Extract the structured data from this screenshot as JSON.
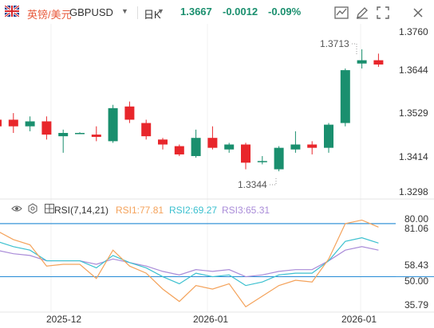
{
  "header": {
    "pair_name": "英镑/美元",
    "symbol": "GBPUSD",
    "interval": "日K",
    "price": "1.3667",
    "change": "-0.0012",
    "change_pct": "-0.09%",
    "up_color": "#1a8f6e",
    "down_color": "#e8262b",
    "tools": [
      "indicator-icon",
      "drawing-icon",
      "fullscreen-icon",
      "close-icon"
    ]
  },
  "price_axis": [
    "1.3760",
    "1.3644",
    "1.3529",
    "1.3414",
    "1.3298"
  ],
  "annotations": {
    "high": "1.3713",
    "low": "1.3344"
  },
  "rsi": {
    "title": "RSI(7,14,21)",
    "rsi1": "RSI1:77.81",
    "rsi2": "RSI2:69.27",
    "rsi3": "RSI3:65.31",
    "axis": [
      "80.00",
      "81.06",
      "58.43",
      "50.00",
      "35.79"
    ],
    "colors": {
      "rsi1": "#f4a25a",
      "rsi2": "#3bc0cf",
      "rsi3": "#a98bd8",
      "ref": "#2c8fd6"
    }
  },
  "x_axis": [
    "2025-12",
    "2026-01",
    "2026-01"
  ],
  "chart_data": {
    "type": "candlestick",
    "y_range": [
      1.326,
      1.379
    ],
    "candles": [
      {
        "o": 1.35,
        "c": 1.348,
        "h": 1.352,
        "l": 1.346
      },
      {
        "o": 1.35,
        "c": 1.348,
        "h": 1.352,
        "l": 1.346
      },
      {
        "o": 1.348,
        "c": 1.3495,
        "h": 1.351,
        "l": 1.3465
      },
      {
        "o": 1.3495,
        "c": 1.3455,
        "h": 1.351,
        "l": 1.344
      },
      {
        "o": 1.345,
        "c": 1.346,
        "h": 1.347,
        "l": 1.34
      },
      {
        "o": 1.346,
        "c": 1.346,
        "h": 1.3462,
        "l": 1.3458
      },
      {
        "o": 1.3455,
        "c": 1.3448,
        "h": 1.348,
        "l": 1.3435
      },
      {
        "o": 1.3435,
        "c": 1.3535,
        "h": 1.3545,
        "l": 1.343
      },
      {
        "o": 1.354,
        "c": 1.35,
        "h": 1.3555,
        "l": 1.349
      },
      {
        "o": 1.349,
        "c": 1.345,
        "h": 1.35,
        "l": 1.344
      },
      {
        "o": 1.344,
        "c": 1.3425,
        "h": 1.3445,
        "l": 1.341
      },
      {
        "o": 1.342,
        "c": 1.3395,
        "h": 1.3425,
        "l": 1.339
      },
      {
        "o": 1.339,
        "c": 1.3445,
        "h": 1.347,
        "l": 1.3385
      },
      {
        "o": 1.3445,
        "c": 1.3415,
        "h": 1.348,
        "l": 1.341
      },
      {
        "o": 1.341,
        "c": 1.3425,
        "h": 1.343,
        "l": 1.34
      },
      {
        "o": 1.3425,
        "c": 1.337,
        "h": 1.343,
        "l": 1.335
      },
      {
        "o": 1.3375,
        "c": 1.3375,
        "h": 1.339,
        "l": 1.3365
      },
      {
        "o": 1.335,
        "c": 1.3415,
        "h": 1.342,
        "l": 1.3344
      },
      {
        "o": 1.341,
        "c": 1.3425,
        "h": 1.3465,
        "l": 1.34
      },
      {
        "o": 1.3425,
        "c": 1.3415,
        "h": 1.3435,
        "l": 1.3395
      },
      {
        "o": 1.3415,
        "c": 1.3485,
        "h": 1.349,
        "l": 1.34
      },
      {
        "o": 1.349,
        "c": 1.365,
        "h": 1.3655,
        "l": 1.348
      },
      {
        "o": 1.367,
        "c": 1.368,
        "h": 1.3713,
        "l": 1.3655
      },
      {
        "o": 1.368,
        "c": 1.3667,
        "h": 1.37,
        "l": 1.366
      }
    ],
    "rsi_range": [
      30,
      84
    ],
    "rsi1": [
      76,
      71,
      68,
      56,
      57,
      57,
      49,
      65,
      56,
      52,
      43,
      36,
      45,
      43,
      46,
      33,
      39,
      45,
      48,
      47,
      60,
      80,
      82,
      78
    ],
    "rsi2": [
      70,
      67,
      65,
      59,
      59,
      59,
      55,
      62,
      58,
      55,
      50,
      46,
      52,
      50,
      51,
      45,
      47,
      51,
      52,
      52,
      59,
      70,
      72,
      69
    ],
    "rsi3": [
      65,
      63,
      62,
      59,
      59,
      59,
      57,
      60,
      58,
      56,
      53,
      51,
      54,
      53,
      54,
      50,
      51,
      53,
      54,
      54,
      59,
      65,
      67,
      65
    ]
  }
}
